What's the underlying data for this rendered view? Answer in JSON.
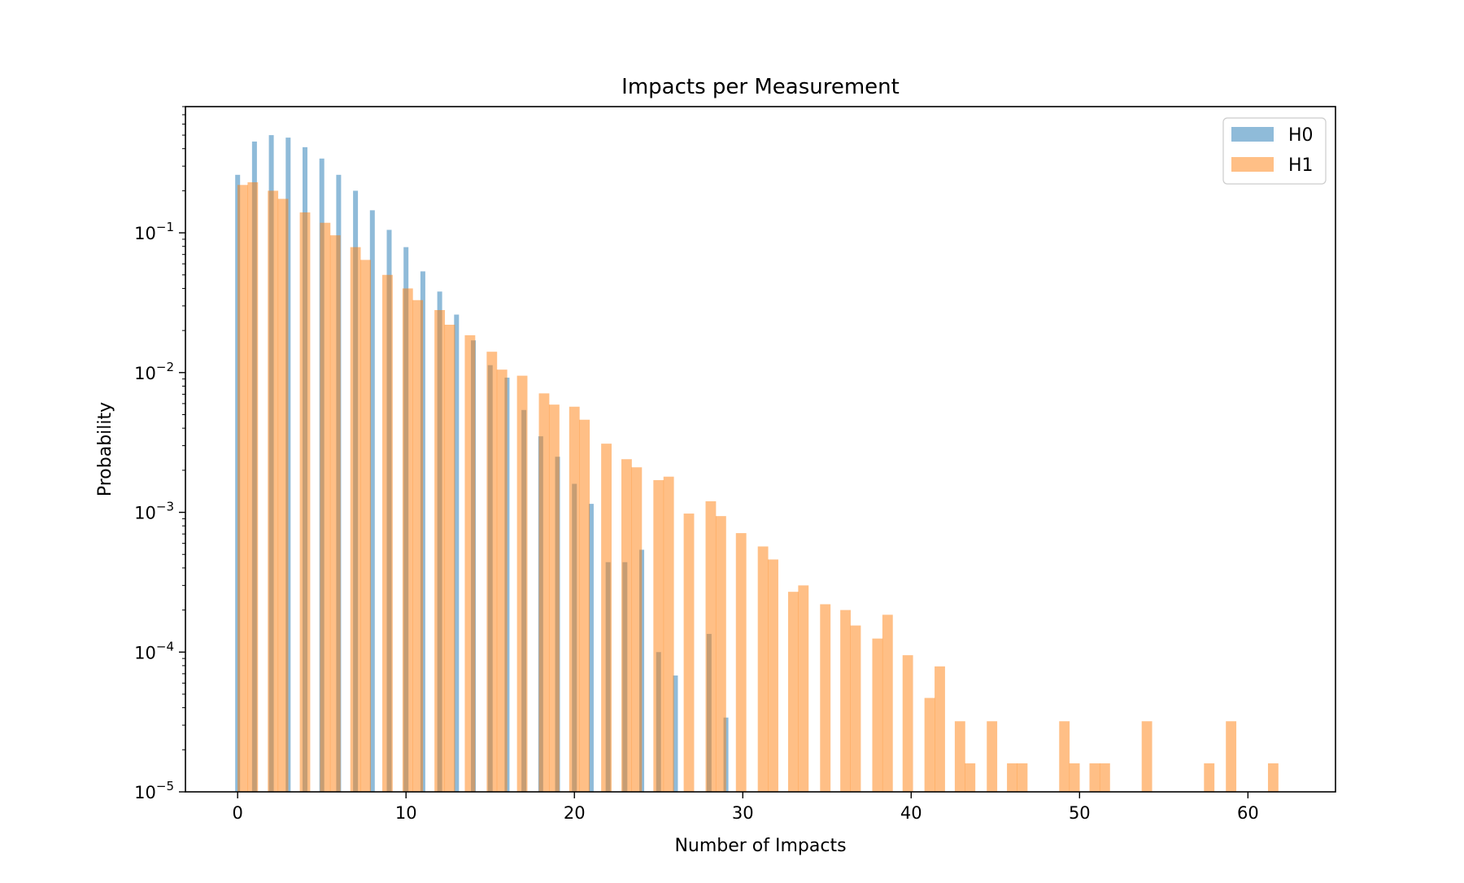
{
  "chart_data": {
    "type": "bar",
    "title": "Impacts per Measurement",
    "xlabel": "Number of Impacts",
    "ylabel": "Probability",
    "yscale": "log",
    "xlim": [
      -3.1,
      65.2
    ],
    "ylim": [
      1e-05,
      0.8
    ],
    "xticks": [
      0,
      10,
      20,
      30,
      40,
      50,
      60
    ],
    "xtick_labels": [
      "0",
      "10",
      "20",
      "30",
      "40",
      "50",
      "60"
    ],
    "yticks": [
      0.1,
      0.01,
      0.001,
      0.0001,
      1e-05
    ],
    "ytick_labels": [
      {
        "base": "10",
        "exp": "−1"
      },
      {
        "base": "10",
        "exp": "−2"
      },
      {
        "base": "10",
        "exp": "−3"
      },
      {
        "base": "10",
        "exp": "−4"
      },
      {
        "base": "10",
        "exp": "−5"
      }
    ],
    "legend_position": "upper right",
    "grid": false,
    "series": [
      {
        "name": "H0",
        "color": "#1f77b4",
        "alpha": 0.5,
        "bin_width": 0.29,
        "bins": [
          {
            "x": 0,
            "y": 0.26
          },
          {
            "x": 1,
            "y": 0.45
          },
          {
            "x": 2,
            "y": 0.5
          },
          {
            "x": 3,
            "y": 0.48
          },
          {
            "x": 4,
            "y": 0.41
          },
          {
            "x": 5,
            "y": 0.34
          },
          {
            "x": 6,
            "y": 0.26
          },
          {
            "x": 7,
            "y": 0.2
          },
          {
            "x": 8,
            "y": 0.145
          },
          {
            "x": 9,
            "y": 0.105
          },
          {
            "x": 10,
            "y": 0.079
          },
          {
            "x": 11,
            "y": 0.053
          },
          {
            "x": 12,
            "y": 0.038
          },
          {
            "x": 13,
            "y": 0.026
          },
          {
            "x": 14,
            "y": 0.017
          },
          {
            "x": 15,
            "y": 0.0113
          },
          {
            "x": 16,
            "y": 0.0092
          },
          {
            "x": 17,
            "y": 0.0054
          },
          {
            "x": 18,
            "y": 0.0035
          },
          {
            "x": 19,
            "y": 0.0025
          },
          {
            "x": 20,
            "y": 0.0016
          },
          {
            "x": 21,
            "y": 0.00115
          },
          {
            "x": 22,
            "y": 0.00044
          },
          {
            "x": 23,
            "y": 0.00044
          },
          {
            "x": 24,
            "y": 0.00054
          },
          {
            "x": 25,
            "y": 0.0001
          },
          {
            "x": 26,
            "y": 6.8e-05
          },
          {
            "x": 28,
            "y": 0.000135
          },
          {
            "x": 29,
            "y": 3.4e-05
          }
        ]
      },
      {
        "name": "H1",
        "color": "#ff7f0e",
        "alpha": 0.5,
        "bin_width": 0.62,
        "bins": [
          {
            "x": 0.3,
            "y": 0.22
          },
          {
            "x": 0.9,
            "y": 0.23
          },
          {
            "x": 2.1,
            "y": 0.2
          },
          {
            "x": 2.7,
            "y": 0.175
          },
          {
            "x": 4.0,
            "y": 0.14
          },
          {
            "x": 5.2,
            "y": 0.118
          },
          {
            "x": 5.8,
            "y": 0.096
          },
          {
            "x": 7.0,
            "y": 0.079
          },
          {
            "x": 7.6,
            "y": 0.064
          },
          {
            "x": 8.9,
            "y": 0.05
          },
          {
            "x": 10.1,
            "y": 0.04
          },
          {
            "x": 10.7,
            "y": 0.033
          },
          {
            "x": 12.0,
            "y": 0.028
          },
          {
            "x": 12.6,
            "y": 0.022
          },
          {
            "x": 13.8,
            "y": 0.0185
          },
          {
            "x": 15.1,
            "y": 0.0141
          },
          {
            "x": 15.7,
            "y": 0.0105
          },
          {
            "x": 16.9,
            "y": 0.0095
          },
          {
            "x": 18.2,
            "y": 0.0071
          },
          {
            "x": 18.8,
            "y": 0.0059
          },
          {
            "x": 20.0,
            "y": 0.0057
          },
          {
            "x": 20.6,
            "y": 0.0046
          },
          {
            "x": 21.9,
            "y": 0.0031
          },
          {
            "x": 23.1,
            "y": 0.0024
          },
          {
            "x": 23.7,
            "y": 0.0021
          },
          {
            "x": 25.0,
            "y": 0.0017
          },
          {
            "x": 25.6,
            "y": 0.0018
          },
          {
            "x": 26.8,
            "y": 0.00098
          },
          {
            "x": 28.1,
            "y": 0.0012
          },
          {
            "x": 28.7,
            "y": 0.00094
          },
          {
            "x": 29.9,
            "y": 0.00071
          },
          {
            "x": 31.2,
            "y": 0.00057
          },
          {
            "x": 31.8,
            "y": 0.00046
          },
          {
            "x": 33.0,
            "y": 0.00027
          },
          {
            "x": 33.6,
            "y": 0.0003
          },
          {
            "x": 34.9,
            "y": 0.00022
          },
          {
            "x": 36.1,
            "y": 0.0002
          },
          {
            "x": 36.7,
            "y": 0.000155
          },
          {
            "x": 38.0,
            "y": 0.000125
          },
          {
            "x": 38.6,
            "y": 0.000185
          },
          {
            "x": 39.8,
            "y": 9.5e-05
          },
          {
            "x": 41.1,
            "y": 4.7e-05
          },
          {
            "x": 41.7,
            "y": 7.9e-05
          },
          {
            "x": 42.9,
            "y": 3.2e-05
          },
          {
            "x": 43.5,
            "y": 1.6e-05
          },
          {
            "x": 44.8,
            "y": 3.2e-05
          },
          {
            "x": 46.0,
            "y": 1.6e-05
          },
          {
            "x": 46.6,
            "y": 1.6e-05
          },
          {
            "x": 49.1,
            "y": 3.2e-05
          },
          {
            "x": 49.7,
            "y": 1.6e-05
          },
          {
            "x": 50.9,
            "y": 1.6e-05
          },
          {
            "x": 51.5,
            "y": 1.6e-05
          },
          {
            "x": 54.0,
            "y": 3.2e-05
          },
          {
            "x": 57.7,
            "y": 1.6e-05
          },
          {
            "x": 59.0,
            "y": 3.2e-05
          },
          {
            "x": 61.5,
            "y": 1.6e-05
          }
        ]
      }
    ]
  }
}
